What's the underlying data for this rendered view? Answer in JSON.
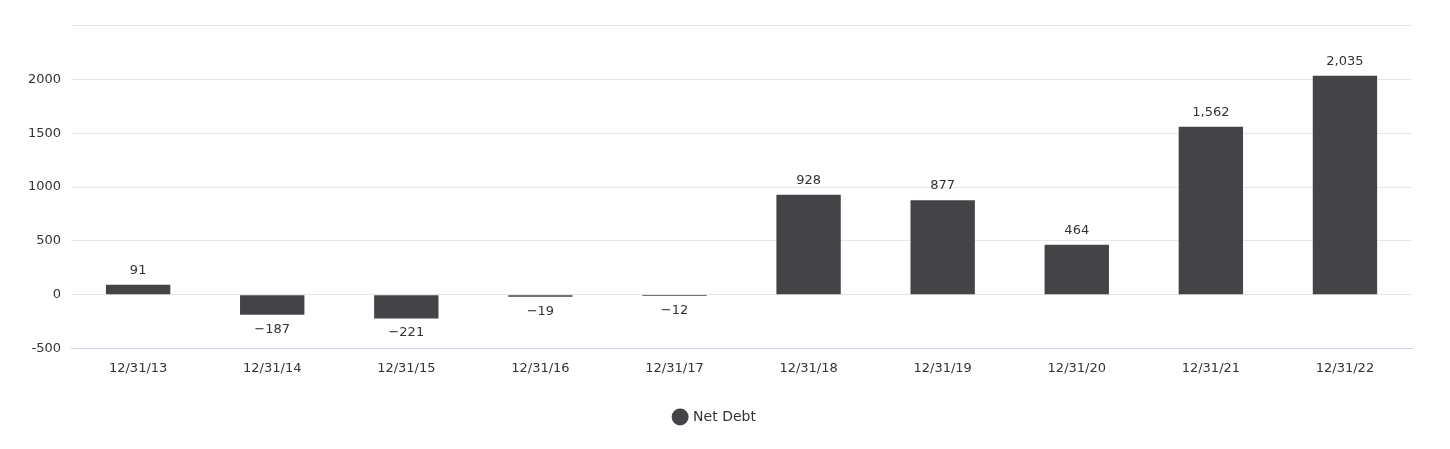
{
  "chart_data": {
    "type": "bar",
    "categories": [
      "12/31/13",
      "12/31/14",
      "12/31/15",
      "12/31/16",
      "12/31/17",
      "12/31/18",
      "12/31/19",
      "12/31/20",
      "12/31/21",
      "12/31/22"
    ],
    "series": [
      {
        "name": "Net Debt",
        "color": "#434348",
        "values": [
          91,
          -187,
          -221,
          -19,
          -12,
          928,
          877,
          464,
          1562,
          2035
        ],
        "value_labels": [
          "91",
          "−187",
          "−221",
          "−19",
          "−12",
          "928",
          "877",
          "464",
          "1,562",
          "2,035"
        ]
      }
    ],
    "ylim": [
      -500,
      2500
    ],
    "yticks": [
      -500,
      0,
      500,
      1000,
      1500,
      2000,
      {
        "value": 2500,
        "label": null
      }
    ],
    "grid": "y",
    "legend": "bottom"
  }
}
